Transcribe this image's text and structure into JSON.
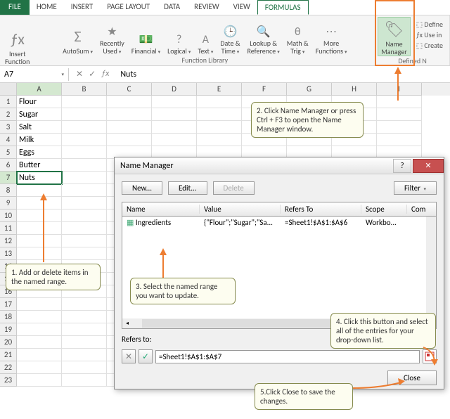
{
  "tabs": {
    "file": "FILE",
    "home": "HOME",
    "insert": "INSERT",
    "page_layout": "PAGE LAYOUT",
    "data": "DATA",
    "review": "REVIEW",
    "view": "VIEW",
    "formulas": "FORMULAS"
  },
  "ribbon": {
    "insert_function": "Insert\nFunction",
    "autosum": "AutoSum",
    "recently": "Recently\nUsed",
    "financial": "Financial",
    "logical": "Logical",
    "text": "Text",
    "date": "Date &\nTime",
    "lookup": "Lookup &\nReference",
    "math": "Math &\nTrig",
    "more": "More\nFunctions",
    "group_label": "Function Library",
    "name_manager": "Name\nManager",
    "defined_group": "Defined N",
    "side": {
      "define": "Define",
      "usein": "Use in",
      "create": "Create"
    }
  },
  "namebox": "A7",
  "formula_bar": "Nuts",
  "columns": [
    "A",
    "B",
    "C",
    "D",
    "E",
    "F",
    "G",
    "H",
    "I"
  ],
  "row_count": 23,
  "active": {
    "row": 7,
    "col": "A"
  },
  "cells": {
    "A1": "Flour",
    "A2": "Sugar",
    "A3": "Salt",
    "A4": "Milk",
    "A5": "Eggs",
    "A6": "Butter",
    "A7": "Nuts"
  },
  "dialog": {
    "title": "Name Manager",
    "new": "New...",
    "edit": "Edit...",
    "delete": "Delete",
    "filter": "Filter",
    "cols": {
      "name": "Name",
      "value": "Value",
      "refers": "Refers To",
      "scope": "Scope",
      "comment": "Com"
    },
    "entry": {
      "name": "Ingredients",
      "value": "{\"Flour\";\"Sugar\";\"Sa...",
      "refers": "=Sheet1!$A$1:$A$6",
      "scope": "Workbo..."
    },
    "refers_label": "Refers to:",
    "refers_value": "=Sheet1!$A$1:$A$7",
    "close": "Close"
  },
  "callouts": {
    "c1": "1. Add or delete items in the named range.",
    "c2": "2. Click Name Manager or press Ctrl + F3 to open the Name Manager window.",
    "c3": "3. Select the named range you want to update.",
    "c4": "4. Click this button and select all of the entries for your drop-down list.",
    "c5": "5.Click Close to save the changes."
  },
  "colors": {
    "accent": "#217346",
    "callout_border": "#868b4e",
    "orange": "#ed7d31"
  }
}
